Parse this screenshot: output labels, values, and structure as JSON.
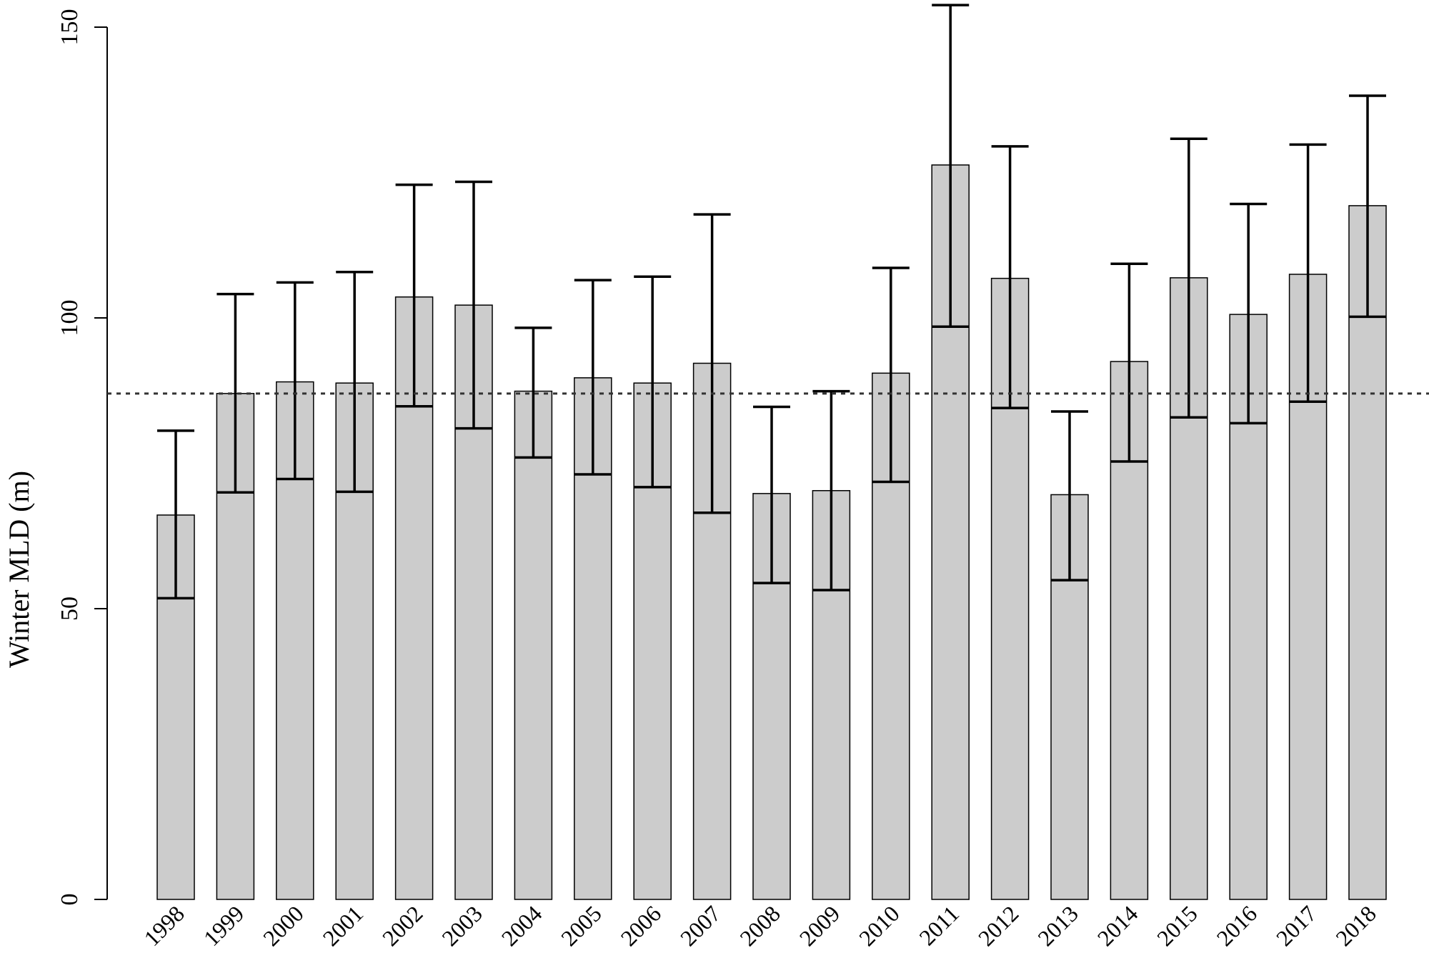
{
  "chart_data": {
    "type": "bar",
    "title": "",
    "xlabel": "",
    "ylabel": "Winter MLD (m)",
    "ylim": [
      0,
      150
    ],
    "yticks": [
      0,
      50,
      100,
      150
    ],
    "ytick_labels": [
      "0",
      "50",
      "100",
      "150"
    ],
    "categories": [
      "1998",
      "1999",
      "2000",
      "2001",
      "2002",
      "2003",
      "2004",
      "2005",
      "2006",
      "2007",
      "2008",
      "2009",
      "2010",
      "2011",
      "2012",
      "2013",
      "2014",
      "2015",
      "2016",
      "2017",
      "2018"
    ],
    "values": [
      66.1,
      87.0,
      89.0,
      88.8,
      103.6,
      102.2,
      87.4,
      89.7,
      88.8,
      92.2,
      69.8,
      70.3,
      90.5,
      126.3,
      106.8,
      69.6,
      92.5,
      106.9,
      100.6,
      107.5,
      119.3
    ],
    "error_lower": [
      51.8,
      70.0,
      72.3,
      70.1,
      84.8,
      81.0,
      76.0,
      73.1,
      70.9,
      66.5,
      54.4,
      53.2,
      71.8,
      98.5,
      84.5,
      54.9,
      75.3,
      82.9,
      81.9,
      85.6,
      100.2
    ],
    "error_upper": [
      80.6,
      104.1,
      106.1,
      107.9,
      122.9,
      123.4,
      98.3,
      106.5,
      107.1,
      117.8,
      84.7,
      87.4,
      108.6,
      153.8,
      129.5,
      83.9,
      109.3,
      130.8,
      119.6,
      129.8,
      138.2
    ],
    "reference_line": {
      "value": 87.0,
      "style": "dotted"
    },
    "bar_color": "#cccccc",
    "grid": false,
    "legend": "none"
  }
}
